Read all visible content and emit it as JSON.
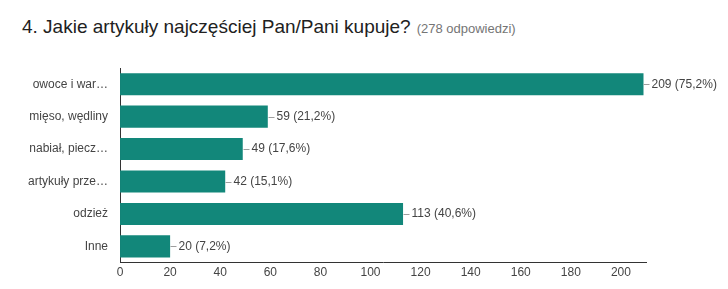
{
  "chart_data": {
    "type": "bar",
    "title": "4. Jakie artykuły najczęściej Pan/Pani kupuje?",
    "subtitle": "(278 odpowiedzi)",
    "orientation": "horizontal",
    "categories": [
      "owoce i war…",
      "mięso, wędliny",
      "nabiał, piecz…",
      "artykuły prze…",
      "odzież",
      "Inne"
    ],
    "values": [
      209,
      59,
      49,
      42,
      113,
      20
    ],
    "value_labels": [
      "209 (75,2%)",
      "59 (21,2%)",
      "49 (17,6%)",
      "42 (15,1%)",
      "113 (40,6%)",
      "20 (7,2%)"
    ],
    "color": "#12877a",
    "xlim": [
      0,
      210
    ],
    "xticks": [
      0,
      20,
      40,
      60,
      80,
      100,
      120,
      140,
      160,
      180,
      200
    ],
    "grid": false,
    "data_labels": true
  }
}
